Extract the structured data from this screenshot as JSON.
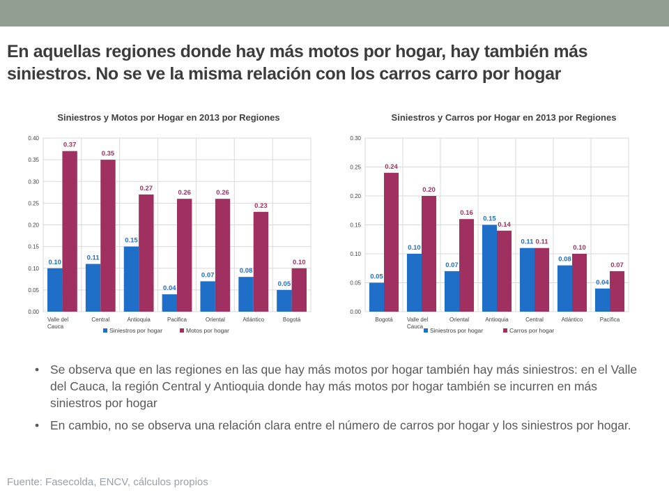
{
  "header": {
    "title_line1": "En aquellas regiones donde hay más motos por hogar, hay también más",
    "title_line2": "siniestros. No se ve la misma relación con los carros carro por hogar"
  },
  "colors": {
    "series1": "#1f6ec8",
    "series2": "#a0305f",
    "label1": "#1f6ec8",
    "label2": "#a0305f",
    "topbar": "#919f92"
  },
  "chart_data": [
    {
      "type": "bar",
      "title": "Siniestros y Motos por Hogar en 2013 por Regiones",
      "categories": [
        [
          "Valle del",
          "Cauca"
        ],
        [
          "Central"
        ],
        [
          "Antioquia"
        ],
        [
          "Pacifica"
        ],
        [
          "Oriental"
        ],
        [
          "Atlántico"
        ],
        [
          "Bogotá"
        ]
      ],
      "series": [
        {
          "name": "Siniestros por hogar",
          "values": [
            0.1,
            0.11,
            0.15,
            0.04,
            0.07,
            0.08,
            0.05
          ],
          "labels": [
            "0.10",
            "0.11",
            "0.15",
            "0.04",
            "0.07",
            "0.08",
            "0.05"
          ]
        },
        {
          "name": "Motos por hogar",
          "values": [
            0.37,
            0.35,
            0.27,
            0.26,
            0.26,
            0.23,
            0.1
          ],
          "labels": [
            "0.37",
            "0.35",
            "0.27",
            "0.26",
            "0.26",
            "0.23",
            "0.10"
          ]
        }
      ],
      "ylim": [
        0,
        0.4
      ],
      "yticks": [
        "0.00",
        "0.05",
        "0.10",
        "0.15",
        "0.20",
        "0.25",
        "0.30",
        "0.35",
        "0.40"
      ],
      "grid": true,
      "legend": "bottom"
    },
    {
      "type": "bar",
      "title": "Siniestros y Carros por Hogar en 2013 por Regiones",
      "categories": [
        [
          "Bogotá"
        ],
        [
          "Valle del",
          "Cauca"
        ],
        [
          "Oriental"
        ],
        [
          "Antioquia"
        ],
        [
          "Central"
        ],
        [
          "Atlántico"
        ],
        [
          "Pacífica"
        ]
      ],
      "series": [
        {
          "name": "Siniestros por hogar",
          "values": [
            0.05,
            0.1,
            0.07,
            0.15,
            0.11,
            0.08,
            0.04
          ],
          "labels": [
            "0.05",
            "0.10",
            "0.07",
            "0.15",
            "0.11",
            "0.08",
            "0.04"
          ]
        },
        {
          "name": "Carros por hogar",
          "values": [
            0.24,
            0.2,
            0.16,
            0.14,
            0.11,
            0.1,
            0.07
          ],
          "labels": [
            "0.24",
            "0.20",
            "0.16",
            "0.14",
            "0.11",
            "0.10",
            "0.07"
          ]
        }
      ],
      "ylim": [
        0,
        0.3
      ],
      "yticks": [
        "0.00",
        "0.05",
        "0.10",
        "0.15",
        "0.20",
        "0.25",
        "0.30"
      ],
      "grid": true,
      "legend": "bottom"
    }
  ],
  "bullets": [
    "Se observa que en las regiones en las que hay más motos por hogar también hay más siniestros: en el Valle del Cauca, la región Central y Antioquia donde hay más motos por hogar también se incurren en más siniestros por hogar",
    "En cambio, no se observa una relación clara entre el número de carros por hogar y los siniestros por hogar."
  ],
  "bullet_symbol": "•",
  "source": "Fuente: Fasecolda, ENCV, cálculos propios"
}
